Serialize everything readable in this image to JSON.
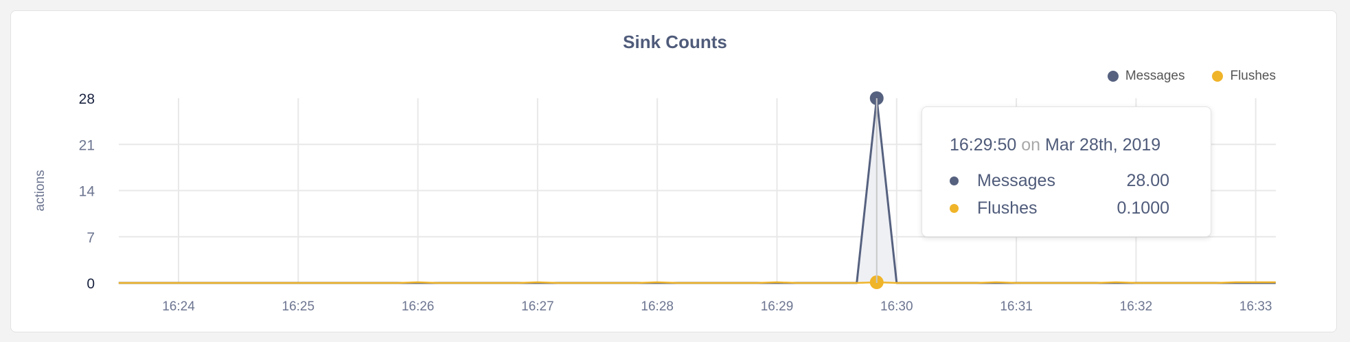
{
  "chart_data": {
    "type": "area",
    "title": "Sink Counts",
    "ylabel": "actions",
    "xlabel": "",
    "ylim": [
      0,
      28
    ],
    "yticks": [
      "0",
      "7",
      "14",
      "21",
      "28"
    ],
    "xticks": [
      "16:24",
      "16:25",
      "16:26",
      "16:27",
      "16:28",
      "16:29",
      "16:30",
      "16:31",
      "16:32",
      "16:33"
    ],
    "xrange": [
      "16:23:30",
      "16:33:10"
    ],
    "grid": true,
    "legend_position": "top-right",
    "series": [
      {
        "name": "Messages",
        "color": "#56617f",
        "x": [
          "16:23:30",
          "16:29:40",
          "16:29:50",
          "16:30:00",
          "16:33:10"
        ],
        "values": [
          0,
          0,
          28,
          0,
          0
        ]
      },
      {
        "name": "Flushes",
        "color": "#f0b429",
        "x": [
          "16:23:30",
          "16:25:50",
          "16:26:00",
          "16:26:10",
          "16:26:50",
          "16:27:00",
          "16:27:10",
          "16:27:50",
          "16:28:00",
          "16:28:10",
          "16:28:50",
          "16:29:00",
          "16:29:10",
          "16:29:40",
          "16:29:50",
          "16:30:00",
          "16:30:40",
          "16:30:50",
          "16:31:00",
          "16:31:40",
          "16:31:50",
          "16:32:00",
          "16:32:40",
          "16:32:50",
          "16:33:10"
        ],
        "values": [
          0,
          0,
          0.1,
          0,
          0,
          0.1,
          0,
          0,
          0.1,
          0,
          0,
          0.1,
          0,
          0,
          0.1,
          0,
          0,
          0.1,
          0,
          0,
          0.1,
          0,
          0,
          0.1,
          0.1
        ]
      }
    ],
    "highlight_x": "16:29:50"
  },
  "tooltip": {
    "time": "16:29:50",
    "on": "on",
    "date": "Mar 28th, 2019",
    "rows": [
      {
        "label": "Messages",
        "value": "28.00",
        "color": "#56617f"
      },
      {
        "label": "Flushes",
        "value": "0.1000",
        "color": "#f0b429"
      }
    ]
  }
}
